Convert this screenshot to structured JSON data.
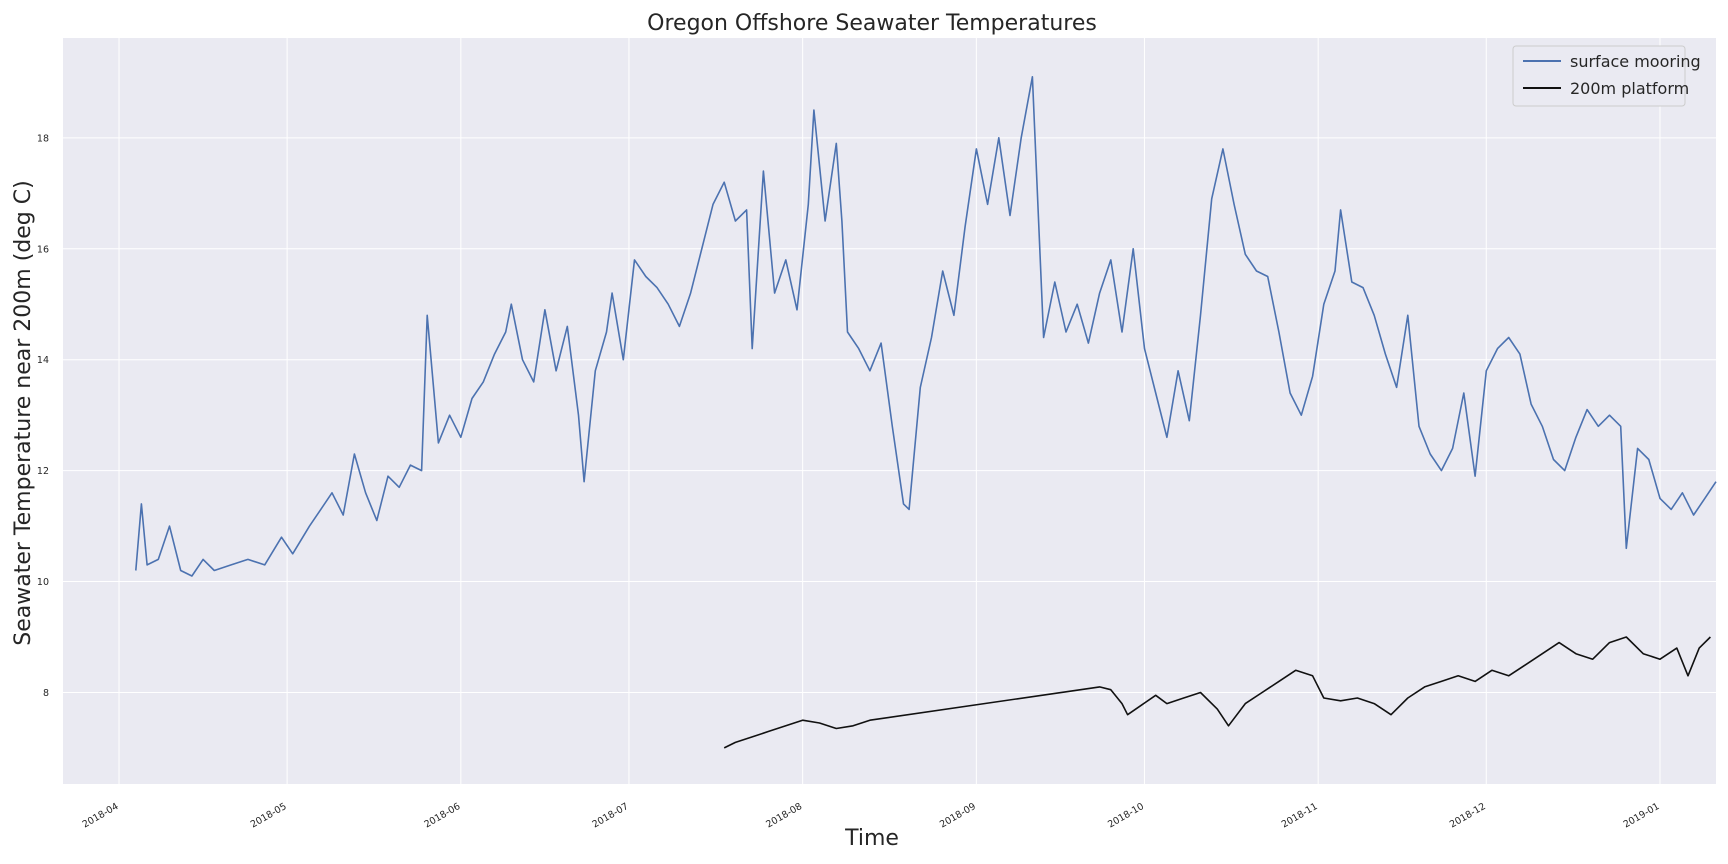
{
  "chart_data": {
    "type": "line",
    "title": "Oregon Offshore Seawater Temperatures",
    "xlabel": "Time",
    "ylabel": "Seawater Temperature near 200m (deg C)",
    "xlim": [
      "2018-03-22",
      "2019-01-11"
    ],
    "ylim": [
      6.35,
      19.8
    ],
    "x_ticks": [
      "2018-04",
      "2018-05",
      "2018-06",
      "2018-07",
      "2018-08",
      "2018-09",
      "2018-10",
      "2018-11",
      "2018-12",
      "2019-01"
    ],
    "y_ticks": [
      8,
      10,
      12,
      14,
      16,
      18
    ],
    "grid": true,
    "legend_position": "top-right",
    "colors": {
      "surface_mooring": "#4c72b0",
      "platform_200m": "#111111",
      "plot_background": "#eaeaf2",
      "grid": "#ffffff"
    },
    "series": [
      {
        "name": "surface mooring",
        "color": "#4c72b0",
        "points": [
          [
            "2018-04-04",
            10.2
          ],
          [
            "2018-04-05",
            11.4
          ],
          [
            "2018-04-06",
            10.3
          ],
          [
            "2018-04-08",
            10.4
          ],
          [
            "2018-04-10",
            11.0
          ],
          [
            "2018-04-12",
            10.2
          ],
          [
            "2018-04-14",
            10.1
          ],
          [
            "2018-04-16",
            10.4
          ],
          [
            "2018-04-18",
            10.2
          ],
          [
            "2018-04-21",
            10.3
          ],
          [
            "2018-04-24",
            10.4
          ],
          [
            "2018-04-27",
            10.3
          ],
          [
            "2018-04-30",
            10.8
          ],
          [
            "2018-05-02",
            10.5
          ],
          [
            "2018-05-05",
            11.0
          ],
          [
            "2018-05-07",
            11.3
          ],
          [
            "2018-05-09",
            11.6
          ],
          [
            "2018-05-11",
            11.2
          ],
          [
            "2018-05-13",
            12.3
          ],
          [
            "2018-05-15",
            11.6
          ],
          [
            "2018-05-17",
            11.1
          ],
          [
            "2018-05-19",
            11.9
          ],
          [
            "2018-05-21",
            11.7
          ],
          [
            "2018-05-23",
            12.1
          ],
          [
            "2018-05-25",
            12.0
          ],
          [
            "2018-05-26",
            14.8
          ],
          [
            "2018-05-28",
            12.5
          ],
          [
            "2018-05-30",
            13.0
          ],
          [
            "2018-06-01",
            12.6
          ],
          [
            "2018-06-03",
            13.3
          ],
          [
            "2018-06-05",
            13.6
          ],
          [
            "2018-06-07",
            14.1
          ],
          [
            "2018-06-09",
            14.5
          ],
          [
            "2018-06-10",
            15.0
          ],
          [
            "2018-06-12",
            14.0
          ],
          [
            "2018-06-14",
            13.6
          ],
          [
            "2018-06-16",
            14.9
          ],
          [
            "2018-06-18",
            13.8
          ],
          [
            "2018-06-20",
            14.6
          ],
          [
            "2018-06-22",
            13.0
          ],
          [
            "2018-06-23",
            11.8
          ],
          [
            "2018-06-25",
            13.8
          ],
          [
            "2018-06-27",
            14.5
          ],
          [
            "2018-06-28",
            15.2
          ],
          [
            "2018-06-30",
            14.0
          ],
          [
            "2018-07-02",
            15.8
          ],
          [
            "2018-07-04",
            15.5
          ],
          [
            "2018-07-06",
            15.3
          ],
          [
            "2018-07-08",
            15.0
          ],
          [
            "2018-07-10",
            14.6
          ],
          [
            "2018-07-12",
            15.2
          ],
          [
            "2018-07-14",
            16.0
          ],
          [
            "2018-07-16",
            16.8
          ],
          [
            "2018-07-18",
            17.2
          ],
          [
            "2018-07-20",
            16.5
          ],
          [
            "2018-07-22",
            16.7
          ],
          [
            "2018-07-23",
            14.2
          ],
          [
            "2018-07-25",
            17.4
          ],
          [
            "2018-07-27",
            15.2
          ],
          [
            "2018-07-29",
            15.8
          ],
          [
            "2018-07-31",
            14.9
          ],
          [
            "2018-08-02",
            16.8
          ],
          [
            "2018-08-03",
            18.5
          ],
          [
            "2018-08-05",
            16.5
          ],
          [
            "2018-08-07",
            17.9
          ],
          [
            "2018-08-08",
            16.5
          ],
          [
            "2018-08-09",
            14.5
          ],
          [
            "2018-08-11",
            14.2
          ],
          [
            "2018-08-13",
            13.8
          ],
          [
            "2018-08-15",
            14.3
          ],
          [
            "2018-08-17",
            12.8
          ],
          [
            "2018-08-19",
            11.4
          ],
          [
            "2018-08-20",
            11.3
          ],
          [
            "2018-08-22",
            13.5
          ],
          [
            "2018-08-24",
            14.4
          ],
          [
            "2018-08-26",
            15.6
          ],
          [
            "2018-08-28",
            14.8
          ],
          [
            "2018-08-30",
            16.4
          ],
          [
            "2018-09-01",
            17.8
          ],
          [
            "2018-09-03",
            16.8
          ],
          [
            "2018-09-05",
            18.0
          ],
          [
            "2018-09-07",
            16.6
          ],
          [
            "2018-09-09",
            18.0
          ],
          [
            "2018-09-11",
            19.1
          ],
          [
            "2018-09-13",
            14.4
          ],
          [
            "2018-09-15",
            15.4
          ],
          [
            "2018-09-17",
            14.5
          ],
          [
            "2018-09-19",
            15.0
          ],
          [
            "2018-09-21",
            14.3
          ],
          [
            "2018-09-23",
            15.2
          ],
          [
            "2018-09-25",
            15.8
          ],
          [
            "2018-09-27",
            14.5
          ],
          [
            "2018-09-29",
            16.0
          ],
          [
            "2018-10-01",
            14.2
          ],
          [
            "2018-10-03",
            13.4
          ],
          [
            "2018-10-05",
            12.6
          ],
          [
            "2018-10-07",
            13.8
          ],
          [
            "2018-10-09",
            12.9
          ],
          [
            "2018-10-11",
            14.8
          ],
          [
            "2018-10-13",
            16.9
          ],
          [
            "2018-10-15",
            17.8
          ],
          [
            "2018-10-17",
            16.8
          ],
          [
            "2018-10-19",
            15.9
          ],
          [
            "2018-10-21",
            15.6
          ],
          [
            "2018-10-23",
            15.5
          ],
          [
            "2018-10-25",
            14.5
          ],
          [
            "2018-10-27",
            13.4
          ],
          [
            "2018-10-29",
            13.0
          ],
          [
            "2018-10-31",
            13.7
          ],
          [
            "2018-11-02",
            15.0
          ],
          [
            "2018-11-04",
            15.6
          ],
          [
            "2018-11-05",
            16.7
          ],
          [
            "2018-11-07",
            15.4
          ],
          [
            "2018-11-09",
            15.3
          ],
          [
            "2018-11-11",
            14.8
          ],
          [
            "2018-11-13",
            14.1
          ],
          [
            "2018-11-15",
            13.5
          ],
          [
            "2018-11-17",
            14.8
          ],
          [
            "2018-11-19",
            12.8
          ],
          [
            "2018-11-21",
            12.3
          ],
          [
            "2018-11-23",
            12.0
          ],
          [
            "2018-11-25",
            12.4
          ],
          [
            "2018-11-27",
            13.4
          ],
          [
            "2018-11-29",
            11.9
          ],
          [
            "2018-12-01",
            13.8
          ],
          [
            "2018-12-03",
            14.2
          ],
          [
            "2018-12-05",
            14.4
          ],
          [
            "2018-12-07",
            14.1
          ],
          [
            "2018-12-09",
            13.2
          ],
          [
            "2018-12-11",
            12.8
          ],
          [
            "2018-12-13",
            12.2
          ],
          [
            "2018-12-15",
            12.0
          ],
          [
            "2018-12-17",
            12.6
          ],
          [
            "2018-12-19",
            13.1
          ],
          [
            "2018-12-21",
            12.8
          ],
          [
            "2018-12-23",
            13.0
          ],
          [
            "2018-12-25",
            12.8
          ],
          [
            "2018-12-26",
            10.6
          ],
          [
            "2018-12-28",
            12.4
          ],
          [
            "2018-12-30",
            12.2
          ],
          [
            "2019-01-01",
            11.5
          ],
          [
            "2019-01-03",
            11.3
          ],
          [
            "2019-01-05",
            11.6
          ],
          [
            "2019-01-07",
            11.2
          ],
          [
            "2019-01-09",
            11.5
          ],
          [
            "2019-01-11",
            11.8
          ]
        ]
      },
      {
        "name": "200m platform",
        "color": "#111111",
        "points": [
          [
            "2018-07-18",
            7.0
          ],
          [
            "2018-07-20",
            7.1
          ],
          [
            "2018-07-23",
            7.2
          ],
          [
            "2018-07-26",
            7.3
          ],
          [
            "2018-07-29",
            7.4
          ],
          [
            "2018-08-01",
            7.5
          ],
          [
            "2018-08-04",
            7.45
          ],
          [
            "2018-08-07",
            7.35
          ],
          [
            "2018-08-10",
            7.4
          ],
          [
            "2018-08-13",
            7.5
          ],
          [
            "2018-09-23",
            8.1
          ],
          [
            "2018-09-25",
            8.05
          ],
          [
            "2018-09-27",
            7.8
          ],
          [
            "2018-09-28",
            7.6
          ],
          [
            "2018-10-03",
            7.95
          ],
          [
            "2018-10-05",
            7.8
          ],
          [
            "2018-10-08",
            7.9
          ],
          [
            "2018-10-11",
            8.0
          ],
          [
            "2018-10-14",
            7.7
          ],
          [
            "2018-10-16",
            7.4
          ],
          [
            "2018-10-19",
            7.8
          ],
          [
            "2018-10-22",
            8.0
          ],
          [
            "2018-10-25",
            8.2
          ],
          [
            "2018-10-28",
            8.4
          ],
          [
            "2018-10-31",
            8.3
          ],
          [
            "2018-11-02",
            7.9
          ],
          [
            "2018-11-05",
            7.85
          ],
          [
            "2018-11-08",
            7.9
          ],
          [
            "2018-11-11",
            7.8
          ],
          [
            "2018-11-14",
            7.6
          ],
          [
            "2018-11-17",
            7.9
          ],
          [
            "2018-11-20",
            8.1
          ],
          [
            "2018-11-23",
            8.2
          ],
          [
            "2018-11-26",
            8.3
          ],
          [
            "2018-11-29",
            8.2
          ],
          [
            "2018-12-02",
            8.4
          ],
          [
            "2018-12-05",
            8.3
          ],
          [
            "2018-12-08",
            8.5
          ],
          [
            "2018-12-11",
            8.7
          ],
          [
            "2018-12-14",
            8.9
          ],
          [
            "2018-12-17",
            8.7
          ],
          [
            "2018-12-20",
            8.6
          ],
          [
            "2018-12-23",
            8.9
          ],
          [
            "2018-12-26",
            9.0
          ],
          [
            "2018-12-29",
            8.7
          ],
          [
            "2019-01-01",
            8.6
          ],
          [
            "2019-01-04",
            8.8
          ],
          [
            "2019-01-06",
            8.3
          ],
          [
            "2019-01-08",
            8.8
          ],
          [
            "2019-01-10",
            9.0
          ]
        ]
      }
    ]
  }
}
